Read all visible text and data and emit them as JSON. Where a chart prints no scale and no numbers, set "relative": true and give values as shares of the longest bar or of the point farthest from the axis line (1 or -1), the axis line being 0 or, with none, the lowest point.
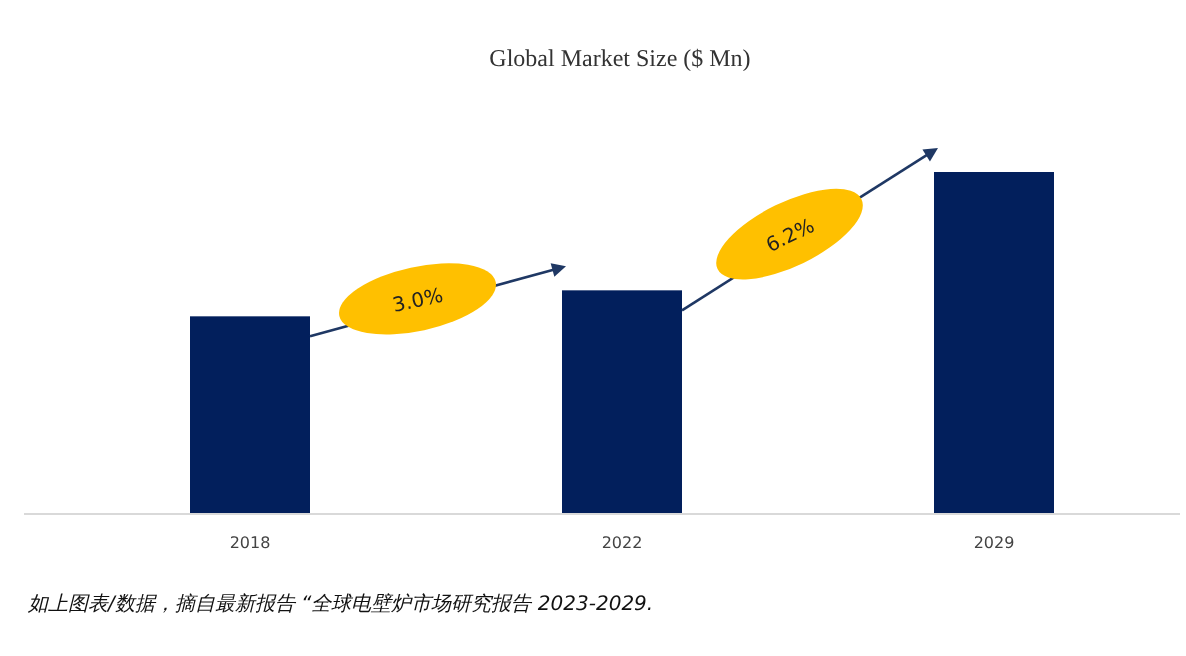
{
  "chart_data": {
    "type": "bar",
    "title": "Global Market Size ($ Mn)",
    "categories": [
      "2018",
      "2022",
      "2029"
    ],
    "values": [
      0.578,
      0.654,
      1
    ],
    "color": "#021f5c",
    "relative": true,
    "annotations": [
      "3.0%",
      "6.2%",
      "如上图表/数据，摘自最新报告 “全球电壁炉市场研究报告 2023-2029."
    ]
  }
}
